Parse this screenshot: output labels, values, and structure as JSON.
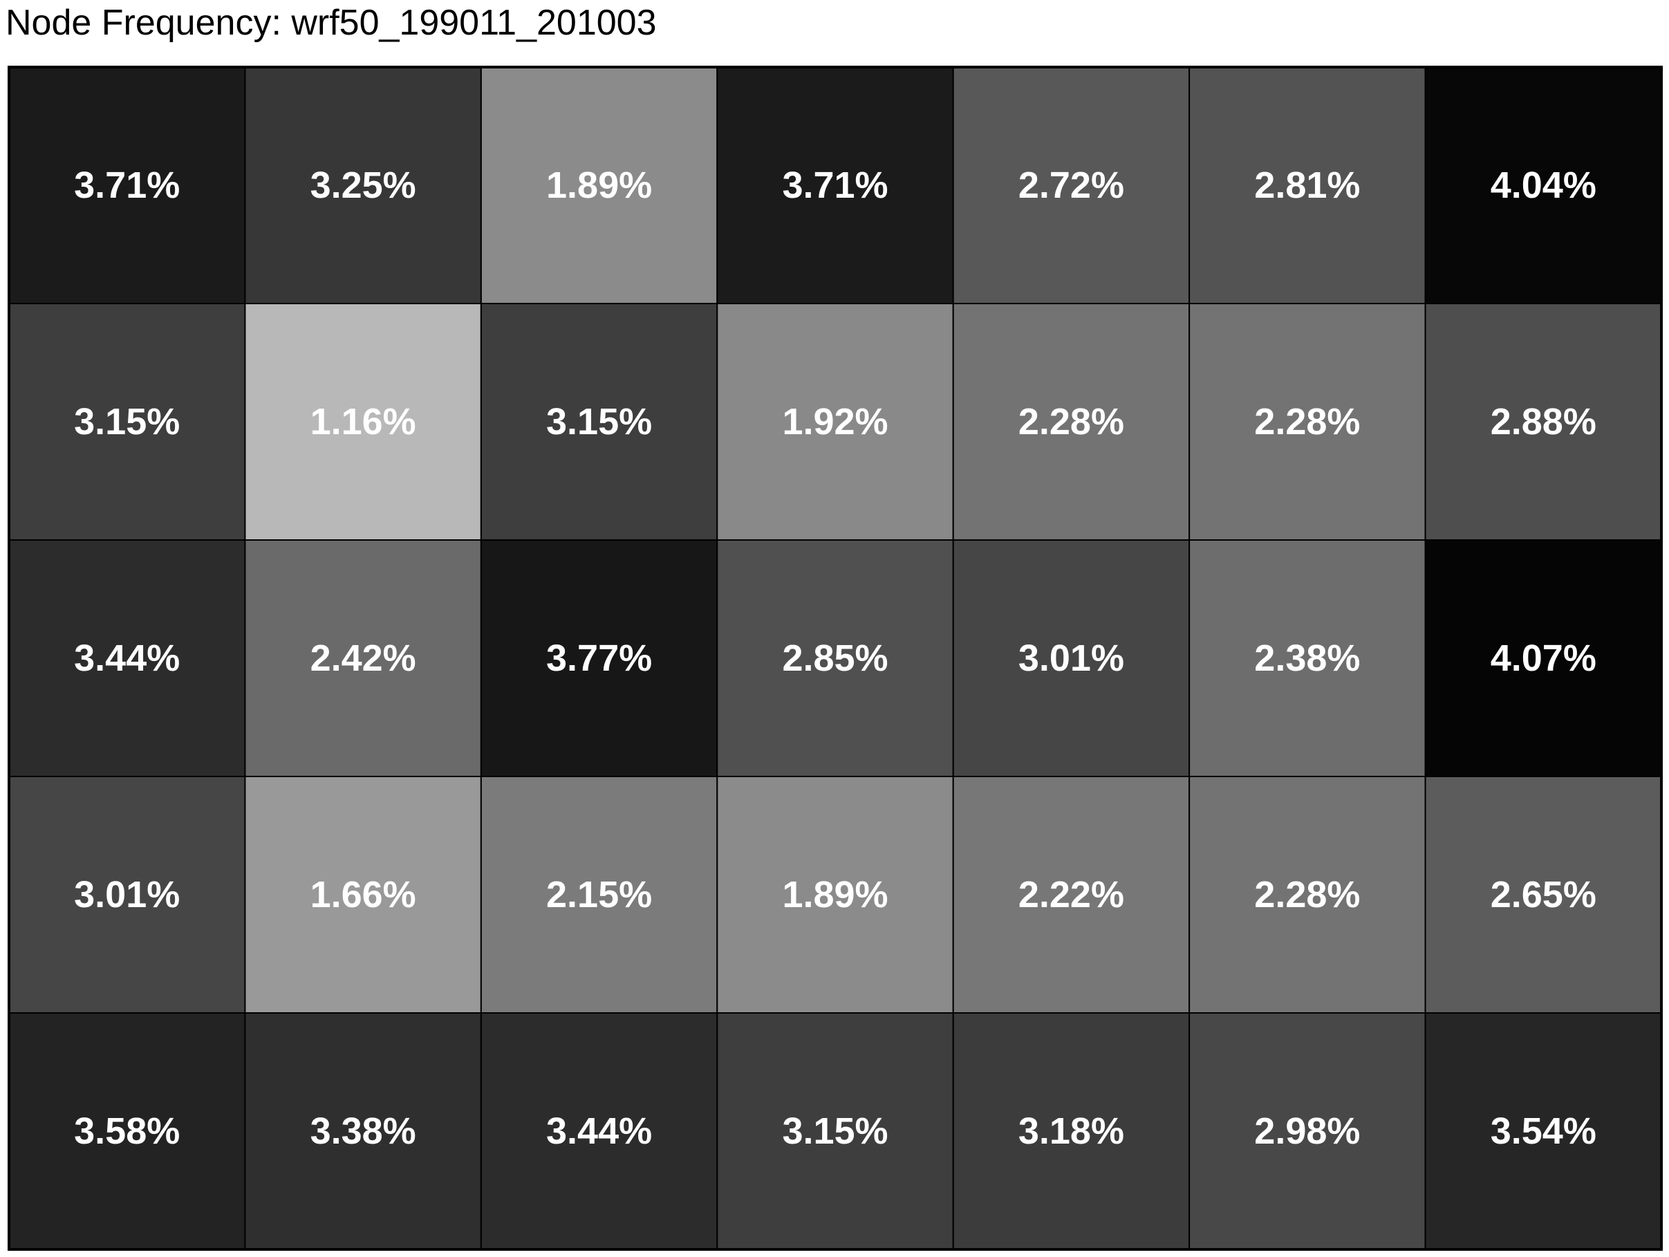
{
  "chart_data": {
    "type": "heatmap",
    "title": "Node Frequency: wrf50_199011_201003",
    "rows": 5,
    "cols": 7,
    "unit": "%",
    "values": [
      [
        3.71,
        3.25,
        1.89,
        3.71,
        2.72,
        2.81,
        4.04
      ],
      [
        3.15,
        1.16,
        3.15,
        1.92,
        2.28,
        2.28,
        2.88
      ],
      [
        3.44,
        2.42,
        3.77,
        2.85,
        3.01,
        2.38,
        4.07
      ],
      [
        3.01,
        1.66,
        2.15,
        1.89,
        2.22,
        2.28,
        2.65
      ],
      [
        3.58,
        3.38,
        3.44,
        3.15,
        3.18,
        2.98,
        3.54
      ]
    ],
    "labels": [
      [
        "3.71%",
        "3.25%",
        "1.89%",
        "3.71%",
        "2.72%",
        "2.81%",
        "4.04%"
      ],
      [
        "3.15%",
        "1.16%",
        "3.15%",
        "1.92%",
        "2.28%",
        "2.28%",
        "2.88%"
      ],
      [
        "3.44%",
        "2.42%",
        "3.77%",
        "2.85%",
        "3.01%",
        "2.38%",
        "4.07%"
      ],
      [
        "3.01%",
        "1.66%",
        "2.15%",
        "1.89%",
        "2.22%",
        "2.28%",
        "2.65%"
      ],
      [
        "3.58%",
        "3.38%",
        "3.44%",
        "3.15%",
        "3.18%",
        "2.98%",
        "3.54%"
      ]
    ],
    "colors": {
      "min_shade": "#b8b8b8",
      "max_shade": "#050505",
      "border": "#000000",
      "label": "#ffffff"
    }
  }
}
